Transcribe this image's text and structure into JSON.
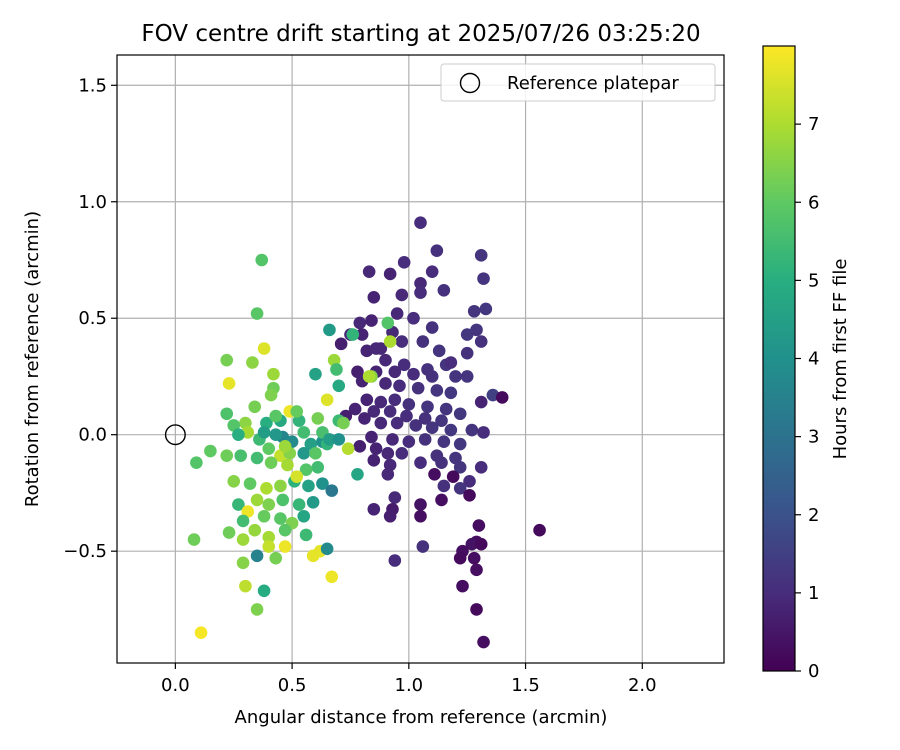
{
  "chart_data": {
    "type": "scatter",
    "title": "FOV centre drift starting at 2025/07/26 03:25:20",
    "xlabel": "Angular distance from reference (arcmin)",
    "ylabel": "Rotation from reference (arcmin)",
    "xlim": [
      -0.25,
      2.35
    ],
    "ylim": [
      -0.98,
      1.63
    ],
    "xticks": [
      0.0,
      0.5,
      1.0,
      1.5,
      2.0
    ],
    "xtick_labels": [
      "0.0",
      "0.5",
      "1.0",
      "1.5",
      "2.0"
    ],
    "yticks": [
      -0.5,
      0.0,
      0.5,
      1.0,
      1.5
    ],
    "ytick_labels": [
      "−0.5",
      "0.0",
      "0.5",
      "1.0",
      "1.5"
    ],
    "grid": true,
    "legend": {
      "position": "top-right",
      "entries": [
        "Reference platepar"
      ]
    },
    "reference_point": {
      "x": 0.0,
      "y": 0.0,
      "marker": "open-circle"
    },
    "colorbar": {
      "label": "Hours from first FF file",
      "colormap": "viridis",
      "range": [
        0,
        8
      ],
      "ticks": [
        0,
        1,
        2,
        3,
        4,
        5,
        6,
        7
      ],
      "tick_labels": [
        "0",
        "1",
        "2",
        "3",
        "4",
        "5",
        "6",
        "7"
      ]
    },
    "points": [
      {
        "x": 1.05,
        "y": 0.91,
        "c": 1.0
      },
      {
        "x": 1.31,
        "y": 0.77,
        "c": 1.2
      },
      {
        "x": 1.12,
        "y": 0.79,
        "c": 1.1
      },
      {
        "x": 0.98,
        "y": 0.74,
        "c": 1.0
      },
      {
        "x": 0.83,
        "y": 0.7,
        "c": 0.9
      },
      {
        "x": 0.92,
        "y": 0.69,
        "c": 0.8
      },
      {
        "x": 1.05,
        "y": 0.65,
        "c": 0.9
      },
      {
        "x": 1.1,
        "y": 0.7,
        "c": 1.0
      },
      {
        "x": 1.32,
        "y": 0.67,
        "c": 1.2
      },
      {
        "x": 0.85,
        "y": 0.59,
        "c": 0.8
      },
      {
        "x": 0.97,
        "y": 0.6,
        "c": 0.9
      },
      {
        "x": 1.05,
        "y": 0.61,
        "c": 1.0
      },
      {
        "x": 1.15,
        "y": 0.62,
        "c": 1.1
      },
      {
        "x": 1.33,
        "y": 0.54,
        "c": 1.3
      },
      {
        "x": 1.28,
        "y": 0.53,
        "c": 1.2
      },
      {
        "x": 0.79,
        "y": 0.48,
        "c": 0.9
      },
      {
        "x": 0.84,
        "y": 0.49,
        "c": 0.8
      },
      {
        "x": 0.95,
        "y": 0.52,
        "c": 0.9
      },
      {
        "x": 1.02,
        "y": 0.5,
        "c": 1.0
      },
      {
        "x": 1.1,
        "y": 0.46,
        "c": 1.1
      },
      {
        "x": 1.29,
        "y": 0.45,
        "c": 1.2
      },
      {
        "x": 1.25,
        "y": 0.43,
        "c": 1.3
      },
      {
        "x": 1.31,
        "y": 0.4,
        "c": 1.1
      },
      {
        "x": 0.75,
        "y": 0.43,
        "c": 0.9
      },
      {
        "x": 0.8,
        "y": 0.43,
        "c": 0.8
      },
      {
        "x": 0.88,
        "y": 0.37,
        "c": 0.9
      },
      {
        "x": 0.97,
        "y": 0.4,
        "c": 1.0
      },
      {
        "x": 1.06,
        "y": 0.4,
        "c": 1.1
      },
      {
        "x": 1.13,
        "y": 0.36,
        "c": 1.2
      },
      {
        "x": 0.71,
        "y": 0.39,
        "c": 0.7
      },
      {
        "x": 0.82,
        "y": 0.36,
        "c": 0.8
      },
      {
        "x": 0.9,
        "y": 0.32,
        "c": 0.9
      },
      {
        "x": 0.98,
        "y": 0.3,
        "c": 1.0
      },
      {
        "x": 1.08,
        "y": 0.28,
        "c": 1.1
      },
      {
        "x": 1.16,
        "y": 0.3,
        "c": 1.2
      },
      {
        "x": 0.78,
        "y": 0.27,
        "c": 0.7
      },
      {
        "x": 0.86,
        "y": 0.27,
        "c": 0.8
      },
      {
        "x": 0.94,
        "y": 0.27,
        "c": 0.9
      },
      {
        "x": 1.02,
        "y": 0.26,
        "c": 1.0
      },
      {
        "x": 1.1,
        "y": 0.25,
        "c": 1.1
      },
      {
        "x": 1.2,
        "y": 0.25,
        "c": 1.2
      },
      {
        "x": 1.25,
        "y": 0.25,
        "c": 1.2
      },
      {
        "x": 0.8,
        "y": 0.23,
        "c": 0.8
      },
      {
        "x": 0.9,
        "y": 0.22,
        "c": 0.9
      },
      {
        "x": 0.96,
        "y": 0.21,
        "c": 1.0
      },
      {
        "x": 1.04,
        "y": 0.2,
        "c": 1.1
      },
      {
        "x": 1.12,
        "y": 0.19,
        "c": 1.2
      },
      {
        "x": 1.18,
        "y": 0.18,
        "c": 1.3
      },
      {
        "x": 1.36,
        "y": 0.17,
        "c": 1.5
      },
      {
        "x": 1.4,
        "y": 0.16,
        "c": 0.2
      },
      {
        "x": 1.31,
        "y": 0.14,
        "c": 0.8
      },
      {
        "x": 0.82,
        "y": 0.15,
        "c": 0.8
      },
      {
        "x": 0.88,
        "y": 0.14,
        "c": 0.9
      },
      {
        "x": 0.94,
        "y": 0.15,
        "c": 1.0
      },
      {
        "x": 1.0,
        "y": 0.13,
        "c": 1.1
      },
      {
        "x": 1.08,
        "y": 0.12,
        "c": 1.2
      },
      {
        "x": 1.16,
        "y": 0.11,
        "c": 1.2
      },
      {
        "x": 0.77,
        "y": 0.11,
        "c": 0.8
      },
      {
        "x": 0.85,
        "y": 0.1,
        "c": 0.9
      },
      {
        "x": 0.92,
        "y": 0.1,
        "c": 1.0
      },
      {
        "x": 0.99,
        "y": 0.08,
        "c": 1.0
      },
      {
        "x": 1.07,
        "y": 0.07,
        "c": 1.1
      },
      {
        "x": 1.14,
        "y": 0.06,
        "c": 1.2
      },
      {
        "x": 1.22,
        "y": 0.09,
        "c": 1.3
      },
      {
        "x": 0.73,
        "y": 0.08,
        "c": 0.7
      },
      {
        "x": 0.81,
        "y": 0.07,
        "c": 0.8
      },
      {
        "x": 0.88,
        "y": 0.05,
        "c": 0.9
      },
      {
        "x": 0.95,
        "y": 0.05,
        "c": 1.0
      },
      {
        "x": 1.03,
        "y": 0.04,
        "c": 1.1
      },
      {
        "x": 1.1,
        "y": 0.03,
        "c": 1.2
      },
      {
        "x": 1.18,
        "y": 0.02,
        "c": 1.3
      },
      {
        "x": 1.27,
        "y": 0.02,
        "c": 1.2
      },
      {
        "x": 1.32,
        "y": 0.01,
        "c": 1.0
      },
      {
        "x": 0.84,
        "y": -0.01,
        "c": 0.8
      },
      {
        "x": 0.93,
        "y": -0.02,
        "c": 0.9
      },
      {
        "x": 1.0,
        "y": -0.03,
        "c": 1.0
      },
      {
        "x": 1.07,
        "y": -0.02,
        "c": 1.1
      },
      {
        "x": 1.15,
        "y": -0.03,
        "c": 1.2
      },
      {
        "x": 1.22,
        "y": -0.04,
        "c": 1.3
      },
      {
        "x": 0.79,
        "y": -0.05,
        "c": 0.7
      },
      {
        "x": 0.86,
        "y": -0.06,
        "c": 0.8
      },
      {
        "x": 0.91,
        "y": -0.08,
        "c": 0.9
      },
      {
        "x": 0.97,
        "y": -0.08,
        "c": 1.0
      },
      {
        "x": 1.12,
        "y": -0.09,
        "c": 1.1
      },
      {
        "x": 1.2,
        "y": -0.1,
        "c": 1.2
      },
      {
        "x": 0.85,
        "y": -0.11,
        "c": 0.8
      },
      {
        "x": 0.92,
        "y": -0.13,
        "c": 0.9
      },
      {
        "x": 1.05,
        "y": -0.12,
        "c": 1.0
      },
      {
        "x": 1.14,
        "y": -0.12,
        "c": 1.1
      },
      {
        "x": 1.22,
        "y": -0.14,
        "c": 1.2
      },
      {
        "x": 1.31,
        "y": -0.14,
        "c": 1.0
      },
      {
        "x": 0.91,
        "y": -0.17,
        "c": 0.9
      },
      {
        "x": 1.11,
        "y": -0.17,
        "c": 0.3
      },
      {
        "x": 1.19,
        "y": -0.18,
        "c": 0.2
      },
      {
        "x": 1.26,
        "y": -0.2,
        "c": 1.0
      },
      {
        "x": 1.15,
        "y": -0.22,
        "c": 1.1
      },
      {
        "x": 1.22,
        "y": -0.23,
        "c": 1.2
      },
      {
        "x": 0.94,
        "y": -0.27,
        "c": 0.9
      },
      {
        "x": 1.14,
        "y": -0.28,
        "c": 0.3
      },
      {
        "x": 1.26,
        "y": -0.26,
        "c": 0.2
      },
      {
        "x": 0.85,
        "y": -0.32,
        "c": 0.8
      },
      {
        "x": 0.93,
        "y": -0.32,
        "c": 0.6
      },
      {
        "x": 1.05,
        "y": -0.3,
        "c": 0.4
      },
      {
        "x": 0.92,
        "y": -0.35,
        "c": 0.7
      },
      {
        "x": 1.05,
        "y": -0.35,
        "c": 0.3
      },
      {
        "x": 1.3,
        "y": -0.39,
        "c": 0.3
      },
      {
        "x": 1.56,
        "y": -0.41,
        "c": 0.2
      },
      {
        "x": 1.29,
        "y": -0.46,
        "c": 0.3
      },
      {
        "x": 1.27,
        "y": -0.47,
        "c": 0.4
      },
      {
        "x": 1.06,
        "y": -0.48,
        "c": 1.1
      },
      {
        "x": 1.31,
        "y": -0.47,
        "c": 0.2
      },
      {
        "x": 1.23,
        "y": -0.5,
        "c": 0.3
      },
      {
        "x": 1.22,
        "y": -0.53,
        "c": 0.2
      },
      {
        "x": 1.28,
        "y": -0.53,
        "c": 0.3
      },
      {
        "x": 0.94,
        "y": -0.54,
        "c": 1.0
      },
      {
        "x": 1.29,
        "y": -0.58,
        "c": 0.3
      },
      {
        "x": 1.23,
        "y": -0.65,
        "c": 0.3
      },
      {
        "x": 1.29,
        "y": -0.75,
        "c": 0.2
      },
      {
        "x": 1.32,
        "y": -0.89,
        "c": 0.3
      },
      {
        "x": 0.86,
        "y": 0.37,
        "c": 0.9
      },
      {
        "x": 0.93,
        "y": 0.44,
        "c": 0.9
      },
      {
        "x": 1.18,
        "y": 0.31,
        "c": 1.0
      },
      {
        "x": 1.25,
        "y": 0.35,
        "c": 1.1
      },
      {
        "x": 0.37,
        "y": 0.75,
        "c": 5.8
      },
      {
        "x": 0.35,
        "y": 0.52,
        "c": 5.9
      },
      {
        "x": 0.38,
        "y": 0.37,
        "c": 7.6
      },
      {
        "x": 0.22,
        "y": 0.32,
        "c": 6.3
      },
      {
        "x": 0.33,
        "y": 0.31,
        "c": 6.6
      },
      {
        "x": 0.23,
        "y": 0.22,
        "c": 7.7
      },
      {
        "x": 0.42,
        "y": 0.26,
        "c": 6.8
      },
      {
        "x": 0.42,
        "y": 0.2,
        "c": 6.2
      },
      {
        "x": 0.41,
        "y": 0.17,
        "c": 6.4
      },
      {
        "x": 0.53,
        "y": 0.06,
        "c": 5.2
      },
      {
        "x": 0.22,
        "y": 0.09,
        "c": 5.7
      },
      {
        "x": 0.34,
        "y": 0.12,
        "c": 6.3
      },
      {
        "x": 0.3,
        "y": 0.05,
        "c": 6.6
      },
      {
        "x": 0.25,
        "y": 0.04,
        "c": 5.8
      },
      {
        "x": 0.45,
        "y": 0.06,
        "c": 4.8
      },
      {
        "x": 0.49,
        "y": 0.1,
        "c": 7.8
      },
      {
        "x": 0.52,
        "y": 0.1,
        "c": 6.1
      },
      {
        "x": 0.39,
        "y": 0.05,
        "c": 5.0
      },
      {
        "x": 0.43,
        "y": 0.08,
        "c": 5.9
      },
      {
        "x": 0.31,
        "y": 0.01,
        "c": 6.9
      },
      {
        "x": 0.36,
        "y": -0.02,
        "c": 5.4
      },
      {
        "x": 0.27,
        "y": 0.0,
        "c": 5.0
      },
      {
        "x": 0.46,
        "y": -0.01,
        "c": 3.6
      },
      {
        "x": 0.5,
        "y": -0.03,
        "c": 3.8
      },
      {
        "x": 0.55,
        "y": 0.01,
        "c": 5.5
      },
      {
        "x": 0.58,
        "y": -0.04,
        "c": 4.5
      },
      {
        "x": 0.63,
        "y": -0.03,
        "c": 4.0
      },
      {
        "x": 0.65,
        "y": -0.04,
        "c": 5.2
      },
      {
        "x": 0.4,
        "y": -0.06,
        "c": 6.0
      },
      {
        "x": 0.45,
        "y": -0.09,
        "c": 7.3
      },
      {
        "x": 0.49,
        "y": -0.08,
        "c": 6.5
      },
      {
        "x": 0.15,
        "y": -0.07,
        "c": 6.0
      },
      {
        "x": 0.09,
        "y": -0.12,
        "c": 5.8
      },
      {
        "x": 0.22,
        "y": -0.09,
        "c": 6.2
      },
      {
        "x": 0.28,
        "y": -0.09,
        "c": 5.6
      },
      {
        "x": 0.35,
        "y": -0.1,
        "c": 5.5
      },
      {
        "x": 0.41,
        "y": -0.12,
        "c": 6.2
      },
      {
        "x": 0.48,
        "y": -0.13,
        "c": 6.9
      },
      {
        "x": 0.55,
        "y": -0.08,
        "c": 4.2
      },
      {
        "x": 0.6,
        "y": -0.08,
        "c": 5.9
      },
      {
        "x": 0.25,
        "y": -0.2,
        "c": 6.5
      },
      {
        "x": 0.32,
        "y": -0.21,
        "c": 6.0
      },
      {
        "x": 0.39,
        "y": -0.23,
        "c": 7.0
      },
      {
        "x": 0.45,
        "y": -0.22,
        "c": 6.6
      },
      {
        "x": 0.51,
        "y": -0.2,
        "c": 5.1
      },
      {
        "x": 0.57,
        "y": -0.22,
        "c": 4.6
      },
      {
        "x": 0.63,
        "y": -0.21,
        "c": 4.0
      },
      {
        "x": 0.67,
        "y": -0.24,
        "c": 3.2
      },
      {
        "x": 0.35,
        "y": -0.28,
        "c": 6.8
      },
      {
        "x": 0.4,
        "y": -0.3,
        "c": 6.4
      },
      {
        "x": 0.46,
        "y": -0.28,
        "c": 5.7
      },
      {
        "x": 0.53,
        "y": -0.3,
        "c": 5.3
      },
      {
        "x": 0.59,
        "y": -0.29,
        "c": 4.3
      },
      {
        "x": 0.27,
        "y": -0.3,
        "c": 5.3
      },
      {
        "x": 0.31,
        "y": -0.33,
        "c": 7.8
      },
      {
        "x": 0.38,
        "y": -0.35,
        "c": 6.1
      },
      {
        "x": 0.45,
        "y": -0.36,
        "c": 5.9
      },
      {
        "x": 0.5,
        "y": -0.38,
        "c": 6.4
      },
      {
        "x": 0.55,
        "y": -0.35,
        "c": 4.7
      },
      {
        "x": 0.29,
        "y": -0.37,
        "c": 5.5
      },
      {
        "x": 0.34,
        "y": -0.41,
        "c": 6.7
      },
      {
        "x": 0.4,
        "y": -0.44,
        "c": 6.9
      },
      {
        "x": 0.47,
        "y": -0.41,
        "c": 5.9
      },
      {
        "x": 0.56,
        "y": -0.43,
        "c": 5.4
      },
      {
        "x": 0.23,
        "y": -0.42,
        "c": 6.2
      },
      {
        "x": 0.29,
        "y": -0.45,
        "c": 6.8
      },
      {
        "x": 0.08,
        "y": -0.45,
        "c": 6.2
      },
      {
        "x": 0.35,
        "y": -0.52,
        "c": 3.5
      },
      {
        "x": 0.4,
        "y": -0.48,
        "c": 7.3
      },
      {
        "x": 0.47,
        "y": -0.48,
        "c": 7.8
      },
      {
        "x": 0.59,
        "y": -0.52,
        "c": 7.7
      },
      {
        "x": 0.62,
        "y": -0.5,
        "c": 7.7
      },
      {
        "x": 0.65,
        "y": -0.49,
        "c": 3.8
      },
      {
        "x": 0.29,
        "y": -0.55,
        "c": 6.5
      },
      {
        "x": 0.43,
        "y": -0.53,
        "c": 6.3
      },
      {
        "x": 0.67,
        "y": -0.61,
        "c": 7.8
      },
      {
        "x": 0.3,
        "y": -0.65,
        "c": 7.2
      },
      {
        "x": 0.38,
        "y": -0.67,
        "c": 4.9
      },
      {
        "x": 0.35,
        "y": -0.75,
        "c": 6.4
      },
      {
        "x": 0.11,
        "y": -0.85,
        "c": 7.9
      },
      {
        "x": 0.66,
        "y": 0.45,
        "c": 4.3
      },
      {
        "x": 0.76,
        "y": 0.43,
        "c": 5.2
      },
      {
        "x": 0.91,
        "y": 0.48,
        "c": 5.8
      },
      {
        "x": 0.92,
        "y": 0.4,
        "c": 7.0
      },
      {
        "x": 0.68,
        "y": 0.32,
        "c": 6.8
      },
      {
        "x": 0.69,
        "y": 0.28,
        "c": 5.5
      },
      {
        "x": 0.84,
        "y": 0.25,
        "c": 6.5
      },
      {
        "x": 0.83,
        "y": 0.25,
        "c": 7.0
      },
      {
        "x": 0.6,
        "y": 0.26,
        "c": 4.6
      },
      {
        "x": 0.7,
        "y": 0.21,
        "c": 4.8
      },
      {
        "x": 0.65,
        "y": 0.15,
        "c": 7.6
      },
      {
        "x": 0.61,
        "y": 0.07,
        "c": 6.3
      },
      {
        "x": 0.7,
        "y": 0.06,
        "c": 5.4
      },
      {
        "x": 0.72,
        "y": 0.05,
        "c": 6.3
      },
      {
        "x": 0.63,
        "y": 0.01,
        "c": 5.6
      },
      {
        "x": 0.66,
        "y": -0.02,
        "c": 4.4
      },
      {
        "x": 0.74,
        "y": -0.06,
        "c": 7.1
      },
      {
        "x": 0.7,
        "y": -0.02,
        "c": 4.0
      },
      {
        "x": 0.78,
        "y": -0.17,
        "c": 4.7
      },
      {
        "x": 0.61,
        "y": -0.14,
        "c": 5.5
      },
      {
        "x": 0.56,
        "y": -0.15,
        "c": 5.8
      },
      {
        "x": 0.52,
        "y": -0.18,
        "c": 7.5
      },
      {
        "x": 0.47,
        "y": -0.05,
        "c": 6.8
      },
      {
        "x": 0.43,
        "y": 0.0,
        "c": 4.2
      },
      {
        "x": 0.38,
        "y": 0.01,
        "c": 4.4
      }
    ]
  }
}
